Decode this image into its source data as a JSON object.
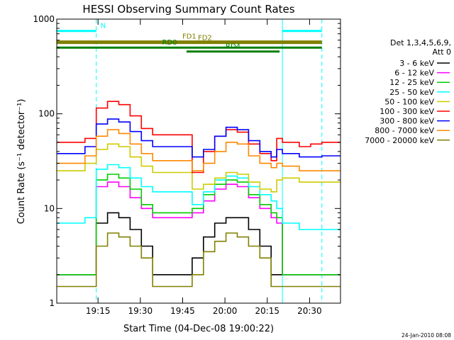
{
  "chart_data": {
    "type": "line",
    "title": "HESSI Observing Summary Count Rates",
    "xlabel": "Start Time (04-Dec-08 19:00:22)",
    "ylabel": "Count Rate (s⁻¹ detector⁻¹)",
    "y_scale": "log",
    "ylim": [
      1,
      1000
    ],
    "xlim": [
      "19:00:22",
      "20:41"
    ],
    "x_ticks": [
      "19:15",
      "19:30",
      "19:45",
      "20:00",
      "20:15",
      "20:30"
    ],
    "y_ticks": [
      "1",
      "10",
      "100",
      "1000"
    ],
    "grid": false,
    "legend_position": "right",
    "legend_title": [
      "Det 1,3,4,5,6,9,",
      "Att 0"
    ],
    "footer": "24-Jan-2010 08:08",
    "x_minutes": [
      0,
      10,
      14,
      18,
      22,
      26,
      30,
      34,
      40,
      46,
      48,
      52,
      56,
      60,
      64,
      68,
      72,
      76,
      78,
      80,
      86,
      90,
      94
    ],
    "series": [
      {
        "name": "3 - 6 keV",
        "color": "#000000",
        "values": [
          2,
          2,
          7,
          9,
          8,
          6,
          4,
          2,
          2,
          2,
          3,
          5,
          7,
          8,
          8,
          6,
          4,
          2,
          2,
          2,
          2,
          2,
          2
        ]
      },
      {
        "name": "6 - 12 keV",
        "color": "#ff00ff",
        "values": [
          2,
          2,
          17,
          19,
          17,
          13,
          10,
          8,
          8,
          8,
          9,
          12,
          16,
          18,
          17,
          13,
          10,
          8,
          7,
          2,
          2,
          2,
          2
        ]
      },
      {
        "name": "12 - 25 keV",
        "color": "#00cc00",
        "values": [
          2,
          2,
          20,
          23,
          21,
          16,
          11,
          9,
          9,
          9,
          10,
          14,
          18,
          20,
          19,
          14,
          11,
          9,
          8,
          2,
          2,
          2,
          2
        ]
      },
      {
        "name": "25 - 50 keV",
        "color": "#00ffff",
        "values": [
          7,
          8,
          26,
          29,
          27,
          21,
          17,
          15,
          15,
          15,
          11,
          15,
          20,
          22,
          21,
          17,
          14,
          12,
          10,
          7,
          6,
          6,
          6
        ]
      },
      {
        "name": "50 - 100 keV",
        "color": "#cccc00",
        "values": [
          25,
          30,
          42,
          48,
          45,
          35,
          28,
          24,
          24,
          24,
          16,
          18,
          21,
          24,
          23,
          19,
          16,
          15,
          20,
          21,
          19,
          19,
          19
        ]
      },
      {
        "name": "100 - 300 keV",
        "color": "#ff0000",
        "values": [
          50,
          55,
          115,
          135,
          125,
          95,
          70,
          60,
          60,
          60,
          24,
          40,
          58,
          68,
          64,
          48,
          38,
          32,
          55,
          50,
          45,
          48,
          50
        ]
      },
      {
        "name": "300 - 800 keV",
        "color": "#0000ff",
        "values": [
          38,
          45,
          78,
          88,
          82,
          65,
          52,
          45,
          45,
          45,
          35,
          42,
          58,
          72,
          68,
          52,
          40,
          35,
          42,
          38,
          35,
          35,
          36
        ]
      },
      {
        "name": "800 - 7000 keV",
        "color": "#ff8800",
        "values": [
          30,
          36,
          58,
          68,
          62,
          48,
          38,
          32,
          32,
          32,
          25,
          30,
          40,
          50,
          48,
          36,
          30,
          27,
          30,
          28,
          25,
          25,
          25
        ]
      },
      {
        "name": "7000 - 20000 keV",
        "color": "#808000",
        "values": [
          1.5,
          1.5,
          4,
          5.5,
          5,
          4,
          3,
          1.5,
          1.5,
          1.5,
          2,
          3.5,
          4.5,
          5.5,
          5,
          4,
          3,
          1.5,
          1.5,
          1.5,
          1.5,
          1.5,
          1.5
        ]
      }
    ],
    "annotations": [
      {
        "label": "N",
        "color": "#00ffff",
        "level": 750,
        "x_range": [
          0,
          14
        ]
      },
      {
        "label": "",
        "color": "#00ffff",
        "level": 750,
        "x_range": [
          80,
          94
        ]
      },
      {
        "label": "FD1",
        "color": "#808000",
        "level": 580,
        "x_range": [
          0,
          94
        ]
      },
      {
        "label": "FD2",
        "color": "#808000",
        "level": 560,
        "x_range": [
          0,
          94
        ]
      },
      {
        "label": "RD0",
        "color": "#008000",
        "level": 500,
        "x_range": [
          0,
          80
        ]
      },
      {
        "label": "",
        "color": "#008000",
        "level": 500,
        "x_range": [
          80,
          94
        ]
      },
      {
        "label": "RD4",
        "color": "#008000",
        "level": 455,
        "x_range": [
          46,
          79
        ]
      }
    ],
    "vertical_markers": [
      {
        "x": 14,
        "color": "#00ffff",
        "style": "dashed"
      },
      {
        "x": 94,
        "color": "#00ffff",
        "style": "dashed"
      },
      {
        "x": 80,
        "color": "#00ffff",
        "style": "solid"
      }
    ]
  }
}
